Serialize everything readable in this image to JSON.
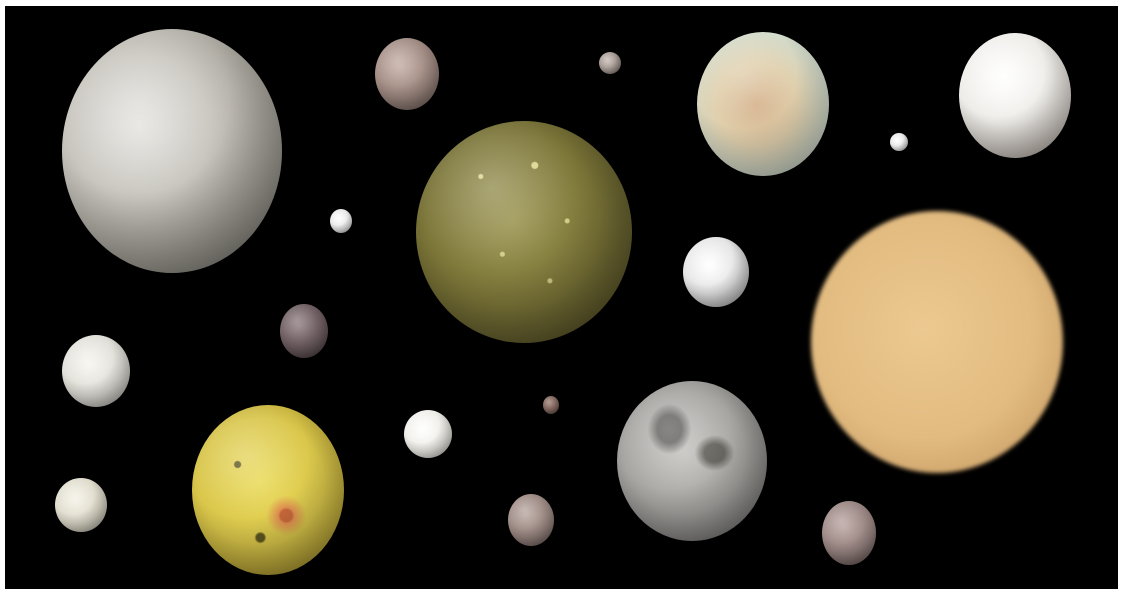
{
  "image": {
    "background": "#000000",
    "border": "#ffffff"
  },
  "moons": [
    {
      "id": "ganymede-like",
      "colors": [
        "#c9c6bf",
        "#8a8780",
        "#e4e3df"
      ]
    },
    {
      "id": "small-mauve-top",
      "colors": [
        "#b39c92",
        "#7b6760"
      ]
    },
    {
      "id": "tiny-top",
      "colors": [
        "#b8aca6",
        "#80736d"
      ]
    },
    {
      "id": "europa-like",
      "colors": [
        "#e6dcc0",
        "#c9a27e",
        "#b7d0c9"
      ]
    },
    {
      "id": "white-top-right",
      "colors": [
        "#f2f1ee",
        "#b9b2ab"
      ]
    },
    {
      "id": "callisto-like",
      "colors": [
        "#8a8444",
        "#4f4a24",
        "#d9d18a"
      ]
    },
    {
      "id": "tiny-white-left",
      "colors": [
        "#ffffff",
        "#cfcfcf"
      ]
    },
    {
      "id": "tiny-white-right",
      "colors": [
        "#ffffff",
        "#cfcfcf"
      ]
    },
    {
      "id": "rhea-like",
      "colors": [
        "#ececec",
        "#9a9a9a"
      ]
    },
    {
      "id": "titan-like",
      "colors": [
        "#e8c48b",
        "#c99f65"
      ]
    },
    {
      "id": "dark-mauve-mid",
      "colors": [
        "#7c6b6e",
        "#4a3f42"
      ]
    },
    {
      "id": "white-left",
      "colors": [
        "#ecebe4",
        "#a9a8a2"
      ]
    },
    {
      "id": "io-like",
      "colors": [
        "#e4d34a",
        "#b9a23c",
        "#d98a4a"
      ]
    },
    {
      "id": "white-center",
      "colors": [
        "#f5f4ee",
        "#c3c2bb"
      ]
    },
    {
      "id": "tiny-mauve",
      "colors": [
        "#8a6d64",
        "#5a4741"
      ]
    },
    {
      "id": "luna-like",
      "colors": [
        "#aaa9a6",
        "#6e6d6a",
        "#d0d0cd"
      ]
    },
    {
      "id": "cream-bottom-left",
      "colors": [
        "#e9e7d8",
        "#b1ae9f"
      ]
    },
    {
      "id": "mauve-bottom",
      "colors": [
        "#a89590",
        "#6f5f5b"
      ]
    },
    {
      "id": "mauve-bottom-right",
      "colors": [
        "#a6908c",
        "#6c5b58"
      ]
    }
  ]
}
